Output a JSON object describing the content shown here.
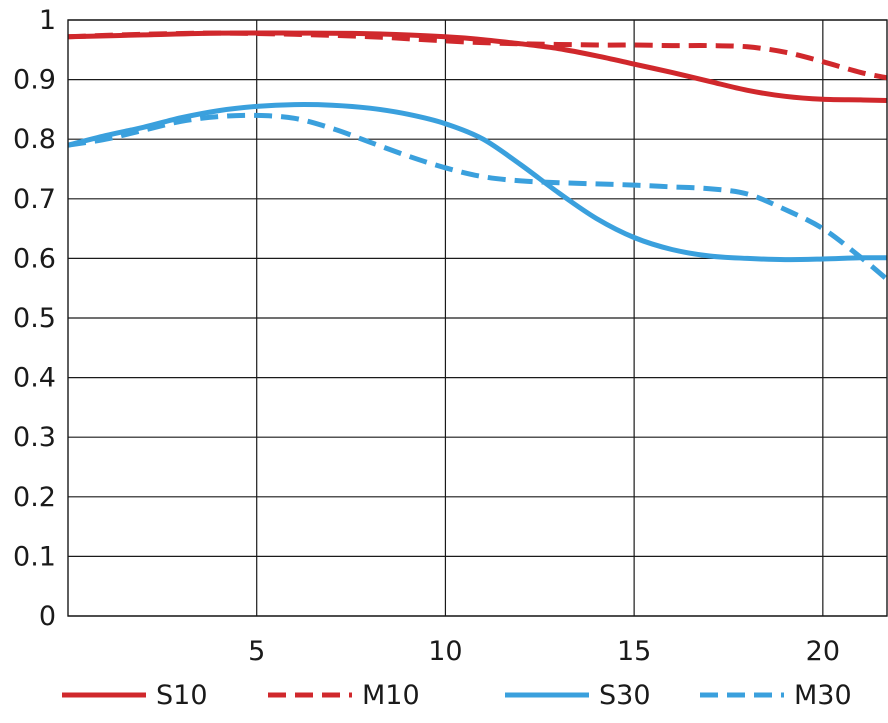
{
  "chart_data": {
    "type": "line",
    "title": "",
    "xlabel": "",
    "ylabel": "",
    "xlim": [
      0,
      21.7
    ],
    "ylim": [
      0,
      1
    ],
    "grid": true,
    "legend_position": "bottom",
    "x_ticks": [
      {
        "value": 5,
        "label": "5"
      },
      {
        "value": 10,
        "label": "10"
      },
      {
        "value": 15,
        "label": "15"
      },
      {
        "value": 20,
        "label": "20"
      }
    ],
    "y_ticks": [
      {
        "value": 0,
        "label": "0"
      },
      {
        "value": 0.1,
        "label": "0.1"
      },
      {
        "value": 0.2,
        "label": "0.2"
      },
      {
        "value": 0.3,
        "label": "0.3"
      },
      {
        "value": 0.4,
        "label": "0.4"
      },
      {
        "value": 0.5,
        "label": "0.5"
      },
      {
        "value": 0.6,
        "label": "0.6"
      },
      {
        "value": 0.7,
        "label": "0.7"
      },
      {
        "value": 0.8,
        "label": "0.8"
      },
      {
        "value": 0.9,
        "label": "0.9"
      },
      {
        "value": 1,
        "label": "1"
      }
    ],
    "series": [
      {
        "name": "S10",
        "color": "#d0282c",
        "dashed": false,
        "points": [
          [
            0,
            0.972
          ],
          [
            2,
            0.975
          ],
          [
            4,
            0.978
          ],
          [
            6,
            0.978
          ],
          [
            8,
            0.977
          ],
          [
            10,
            0.972
          ],
          [
            11,
            0.967
          ],
          [
            12,
            0.96
          ],
          [
            13,
            0.952
          ],
          [
            14,
            0.94
          ],
          [
            15,
            0.926
          ],
          [
            16,
            0.912
          ],
          [
            17,
            0.897
          ],
          [
            18,
            0.882
          ],
          [
            19,
            0.872
          ],
          [
            20,
            0.867
          ],
          [
            21,
            0.866
          ],
          [
            21.7,
            0.865
          ]
        ]
      },
      {
        "name": "M10",
        "color": "#d0282c",
        "dashed": true,
        "points": [
          [
            0,
            0.972
          ],
          [
            2,
            0.976
          ],
          [
            4,
            0.978
          ],
          [
            6,
            0.976
          ],
          [
            8,
            0.972
          ],
          [
            10,
            0.965
          ],
          [
            11,
            0.962
          ],
          [
            12,
            0.96
          ],
          [
            14,
            0.958
          ],
          [
            15,
            0.958
          ],
          [
            16,
            0.957
          ],
          [
            17,
            0.957
          ],
          [
            18,
            0.955
          ],
          [
            19,
            0.946
          ],
          [
            20,
            0.93
          ],
          [
            21,
            0.912
          ],
          [
            21.7,
            0.903
          ]
        ]
      },
      {
        "name": "S30",
        "color": "#3aa0dd",
        "dashed": false,
        "points": [
          [
            0,
            0.79
          ],
          [
            1,
            0.806
          ],
          [
            2,
            0.82
          ],
          [
            3,
            0.836
          ],
          [
            4,
            0.848
          ],
          [
            5,
            0.855
          ],
          [
            6,
            0.858
          ],
          [
            7,
            0.857
          ],
          [
            8,
            0.852
          ],
          [
            9,
            0.842
          ],
          [
            10,
            0.826
          ],
          [
            11,
            0.8
          ],
          [
            12,
            0.757
          ],
          [
            13,
            0.71
          ],
          [
            14,
            0.667
          ],
          [
            15,
            0.635
          ],
          [
            16,
            0.615
          ],
          [
            17,
            0.604
          ],
          [
            18,
            0.6
          ],
          [
            19,
            0.598
          ],
          [
            20,
            0.599
          ],
          [
            21,
            0.601
          ],
          [
            21.7,
            0.601
          ]
        ]
      },
      {
        "name": "M30",
        "color": "#3aa0dd",
        "dashed": true,
        "points": [
          [
            0,
            0.79
          ],
          [
            1,
            0.8
          ],
          [
            2,
            0.815
          ],
          [
            3,
            0.83
          ],
          [
            4,
            0.838
          ],
          [
            5,
            0.84
          ],
          [
            6,
            0.835
          ],
          [
            7,
            0.818
          ],
          [
            8,
            0.795
          ],
          [
            9,
            0.772
          ],
          [
            10,
            0.752
          ],
          [
            11,
            0.737
          ],
          [
            12,
            0.73
          ],
          [
            13,
            0.727
          ],
          [
            14,
            0.725
          ],
          [
            15,
            0.723
          ],
          [
            16,
            0.72
          ],
          [
            17,
            0.717
          ],
          [
            18,
            0.708
          ],
          [
            19,
            0.682
          ],
          [
            20,
            0.65
          ],
          [
            21,
            0.602
          ],
          [
            21.7,
            0.565
          ]
        ]
      }
    ]
  }
}
